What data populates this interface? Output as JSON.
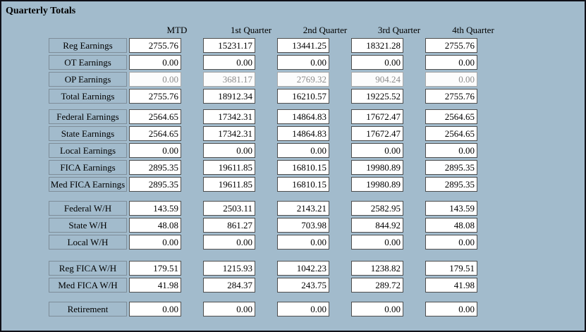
{
  "title": "Quarterly Totals",
  "columns": [
    "MTD",
    "1st Quarter",
    "2nd Quarter",
    "3rd Quarter",
    "4th Quarter"
  ],
  "column_keys": [
    "mtd",
    "q1",
    "q2",
    "q3",
    "q4"
  ],
  "groups": [
    {
      "rows": [
        {
          "label": "Reg Earnings",
          "disabled": false,
          "values": [
            "2755.76",
            "15231.17",
            "13441.25",
            "18321.28",
            "2755.76"
          ]
        },
        {
          "label": "OT Earnings",
          "disabled": false,
          "values": [
            "0.00",
            "0.00",
            "0.00",
            "0.00",
            "0.00"
          ]
        },
        {
          "label": "OP Earnings",
          "disabled": true,
          "values": [
            "0.00",
            "3681.17",
            "2769.32",
            "904.24",
            "0.00"
          ]
        },
        {
          "label": "Total Earnings",
          "disabled": false,
          "values": [
            "2755.76",
            "18912.34",
            "16210.57",
            "19225.52",
            "2755.76"
          ]
        }
      ]
    },
    {
      "rows": [
        {
          "label": "Federal Earnings",
          "disabled": false,
          "values": [
            "2564.65",
            "17342.31",
            "14864.83",
            "17672.47",
            "2564.65"
          ]
        },
        {
          "label": "State Earnings",
          "disabled": false,
          "values": [
            "2564.65",
            "17342.31",
            "14864.83",
            "17672.47",
            "2564.65"
          ]
        },
        {
          "label": "Local Earnings",
          "disabled": false,
          "values": [
            "0.00",
            "0.00",
            "0.00",
            "0.00",
            "0.00"
          ]
        },
        {
          "label": "FICA Earnings",
          "disabled": false,
          "values": [
            "2895.35",
            "19611.85",
            "16810.15",
            "19980.89",
            "2895.35"
          ]
        },
        {
          "label": "Med FICA Earnings",
          "disabled": false,
          "values": [
            "2895.35",
            "19611.85",
            "16810.15",
            "19980.89",
            "2895.35"
          ]
        }
      ]
    },
    {
      "rows": [
        {
          "label": "Federal W/H",
          "disabled": false,
          "values": [
            "143.59",
            "2503.11",
            "2143.21",
            "2582.95",
            "143.59"
          ]
        },
        {
          "label": "State W/H",
          "disabled": false,
          "values": [
            "48.08",
            "861.27",
            "703.98",
            "844.92",
            "48.08"
          ]
        },
        {
          "label": "Local W/H",
          "disabled": false,
          "values": [
            "0.00",
            "0.00",
            "0.00",
            "0.00",
            "0.00"
          ]
        }
      ]
    },
    {
      "rows": [
        {
          "label": "Reg FICA W/H",
          "disabled": false,
          "values": [
            "179.51",
            "1215.93",
            "1042.23",
            "1238.82",
            "179.51"
          ]
        },
        {
          "label": "Med FICA W/H",
          "disabled": false,
          "values": [
            "41.98",
            "284.37",
            "243.75",
            "289.72",
            "41.98"
          ]
        }
      ]
    },
    {
      "rows": [
        {
          "label": "Retirement",
          "disabled": false,
          "values": [
            "0.00",
            "0.00",
            "0.00",
            "0.00",
            "0.00"
          ]
        }
      ]
    }
  ],
  "colors": {
    "window_background": "#a2bbcc",
    "window_border": "#101018",
    "input_background": "#ffffff",
    "input_border": "#4e4e4e",
    "disabled_text": "#8b8b8b",
    "label_border": "#7e8d99",
    "text": "#000000"
  }
}
